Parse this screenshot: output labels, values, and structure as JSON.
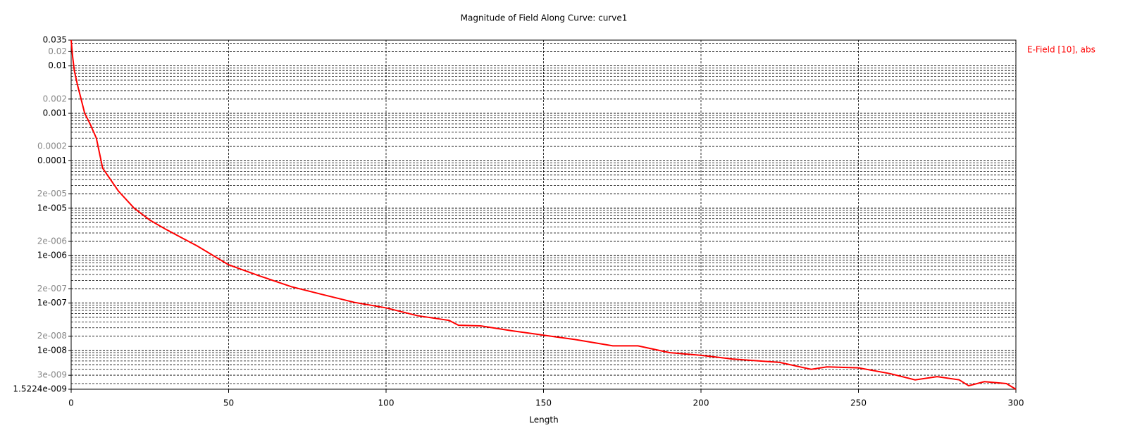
{
  "chart_data": {
    "type": "line",
    "title": "Magnitude of Field Along Curve: curve1",
    "x_label": "Length",
    "xlim": [
      0,
      300
    ],
    "xticks": [
      0,
      50,
      100,
      150,
      200,
      250,
      300
    ],
    "ylim": [
      1.5224e-09,
      0.035
    ],
    "y_scale": "log",
    "grid": true,
    "minor_grid": true,
    "legend_position": "right",
    "yticks": [
      0.035,
      0.02,
      0.01,
      0.002,
      0.001,
      0.0002,
      0.0001,
      {
        "value": 2e-05,
        "label": "2e-005"
      },
      {
        "value": 1e-05,
        "label": "1e-005"
      },
      {
        "value": 2e-06,
        "label": "2e-006"
      },
      {
        "value": 1e-06,
        "label": "1e-006"
      },
      {
        "value": 2e-07,
        "label": "2e-007"
      },
      {
        "value": 1e-07,
        "label": "1e-007"
      },
      {
        "value": 2e-08,
        "label": "2e-008"
      },
      {
        "value": 1e-08,
        "label": "1e-008"
      },
      {
        "value": 3e-09,
        "label": "3e-009"
      },
      {
        "value": 1.5224e-09,
        "label": "1.5224e-009"
      }
    ],
    "x": [
      0,
      0.5,
      1,
      2,
      3,
      4.3,
      6,
      8,
      10,
      15,
      20,
      25,
      30,
      40,
      50,
      60,
      70,
      80,
      90,
      100,
      110,
      120,
      123,
      130,
      140,
      150,
      160,
      172,
      180,
      190,
      200,
      210,
      225,
      235,
      240,
      250,
      260,
      268,
      275,
      282,
      285,
      290,
      297,
      300
    ],
    "series": [
      {
        "name": "E-Field [10], abs",
        "color": "#ff0000",
        "values": [
          0.035,
          0.015,
          0.008,
          0.004,
          0.0022,
          0.001,
          0.0006,
          0.0003,
          7e-05,
          2.3e-05,
          1e-05,
          5.6e-06,
          3.6e-06,
          1.6e-06,
          6.4e-07,
          3.7e-07,
          2.2e-07,
          1.5e-07,
          1.03e-07,
          7.9e-08,
          5.4e-08,
          4.3e-08,
          3.4e-08,
          3.3e-08,
          2.6e-08,
          2.1e-08,
          1.7e-08,
          1.25e-08,
          1.25e-08,
          9e-09,
          7.9e-09,
          6.6e-09,
          5.6e-09,
          4e-09,
          4.5e-09,
          4.3e-09,
          3.25e-09,
          2.4e-09,
          2.8e-09,
          2.4e-09,
          1.8e-09,
          2.2e-09,
          2e-09,
          1.5224e-09
        ]
      }
    ]
  }
}
